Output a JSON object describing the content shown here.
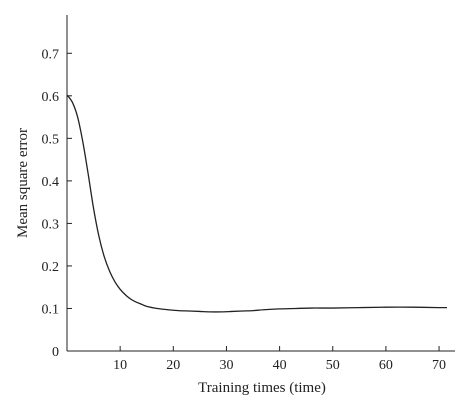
{
  "chart_data": {
    "type": "line",
    "xlabel": "Training times (time)",
    "ylabel": "Mean square error",
    "xlim": [
      0,
      73
    ],
    "ylim": [
      0,
      0.79
    ],
    "xticks": [
      10,
      20,
      30,
      40,
      50,
      60,
      70
    ],
    "yticks": [
      0,
      0.1,
      0.2,
      0.3,
      0.4,
      0.5,
      0.6,
      0.7
    ],
    "ytick_labels": [
      "0",
      "0.1",
      "0.2",
      "0.3",
      "0.4",
      "0.5",
      "0.6",
      "0.7"
    ],
    "grid": false,
    "series": [
      {
        "color": "#222222",
        "x": [
          0,
          1,
          2,
          3,
          4,
          5,
          6,
          7,
          8,
          9,
          10,
          11,
          12,
          13,
          14,
          15,
          17,
          19,
          21,
          23,
          25,
          27,
          29,
          31,
          33,
          35,
          37,
          40,
          43,
          46,
          50,
          55,
          60,
          65,
          70,
          71.5
        ],
        "y": [
          0.602,
          0.585,
          0.55,
          0.49,
          0.415,
          0.335,
          0.27,
          0.222,
          0.188,
          0.163,
          0.145,
          0.132,
          0.122,
          0.115,
          0.11,
          0.105,
          0.1,
          0.097,
          0.095,
          0.094,
          0.093,
          0.092,
          0.092,
          0.093,
          0.094,
          0.095,
          0.097,
          0.099,
          0.1,
          0.101,
          0.101,
          0.102,
          0.103,
          0.103,
          0.102,
          0.102
        ]
      }
    ]
  }
}
